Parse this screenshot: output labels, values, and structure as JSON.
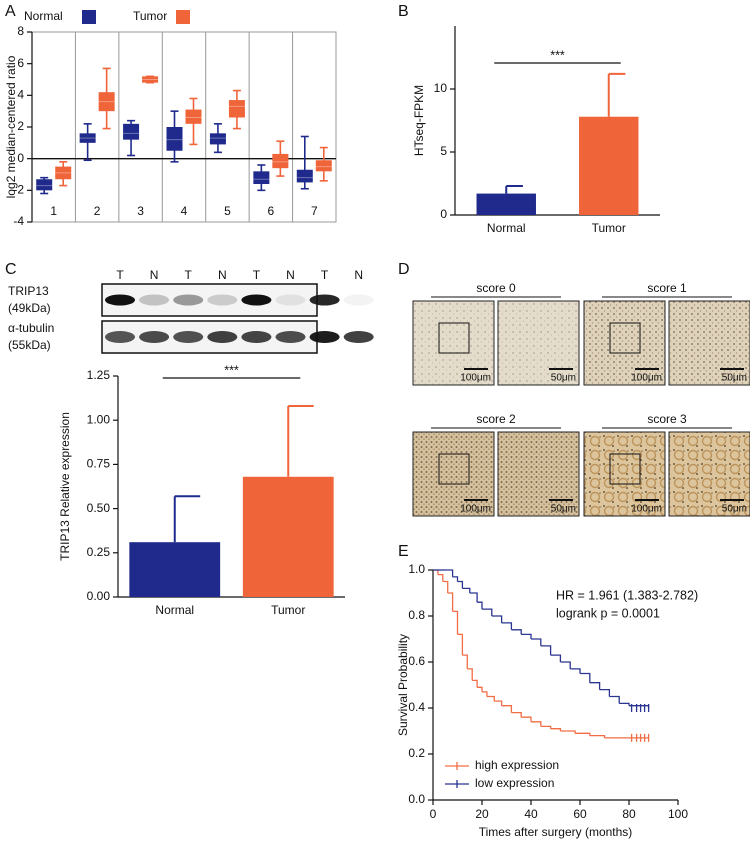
{
  "chart_data": [
    {
      "panel": "A",
      "type": "box",
      "ylabel": "log2 median-centered ratio",
      "categories": [
        "1",
        "2",
        "3",
        "4",
        "5",
        "6",
        "7"
      ],
      "ylim": [
        -4,
        8
      ],
      "yticks": [
        -4,
        -2,
        0,
        2,
        4,
        6,
        8
      ],
      "series": [
        {
          "name": "Normal",
          "color": "#1f2a8c",
          "min": [
            -2.2,
            -0.1,
            0.2,
            -0.2,
            0.4,
            -2.0,
            -1.9
          ],
          "q1": [
            -2.0,
            1.0,
            1.2,
            0.5,
            0.9,
            -1.6,
            -1.5
          ],
          "median": [
            -1.7,
            1.3,
            1.6,
            1.2,
            1.3,
            -1.3,
            -1.2
          ],
          "q3": [
            -1.3,
            1.6,
            2.2,
            2.0,
            1.6,
            -0.8,
            -0.7
          ],
          "max": [
            -1.2,
            2.2,
            2.4,
            3.0,
            2.2,
            -0.4,
            1.4
          ]
        },
        {
          "name": "Tumor",
          "color": "#f0643a",
          "min": [
            -1.7,
            1.9,
            4.8,
            0.9,
            1.9,
            -1.1,
            -1.4
          ],
          "q1": [
            -1.3,
            3.0,
            4.8,
            2.2,
            2.6,
            -0.6,
            -0.8
          ],
          "median": [
            -0.9,
            3.6,
            5.0,
            2.6,
            3.3,
            -0.2,
            -0.5
          ],
          "q3": [
            -0.5,
            4.2,
            5.2,
            3.1,
            3.7,
            0.3,
            -0.1
          ],
          "max": [
            -0.2,
            5.7,
            5.2,
            3.8,
            4.3,
            1.1,
            0.7
          ]
        }
      ]
    },
    {
      "panel": "B",
      "type": "bar",
      "ylabel": "HTseq-FPKM",
      "categories": [
        "Normal",
        "Tumor"
      ],
      "values": [
        1.7,
        7.8
      ],
      "errors": [
        0.6,
        3.4
      ],
      "colors": [
        "#1f2a8c",
        "#f0643a"
      ],
      "ylim": [
        0,
        15
      ],
      "yticks": [
        0,
        5,
        10
      ],
      "annotation": "***"
    },
    {
      "panel": "C",
      "type": "bar",
      "ylabel": "TRIP13 Relative expression",
      "blot": {
        "lanes": [
          "T",
          "N",
          "T",
          "N",
          "T",
          "N",
          "T",
          "N"
        ],
        "rows": [
          {
            "name": "TRIP13",
            "size": "(49kDa)"
          },
          {
            "name": "α-tubulin",
            "size": "(55kDa)"
          }
        ]
      },
      "categories": [
        "Normal",
        "Tumor"
      ],
      "values": [
        0.31,
        0.68
      ],
      "errors": [
        0.26,
        0.4
      ],
      "colors": [
        "#1f2a8c",
        "#f0643a"
      ],
      "ylim": [
        0,
        1.25
      ],
      "yticks": [
        {
          "value": 0,
          "label": "0.00"
        },
        {
          "value": 0.25,
          "label": "0.25"
        },
        {
          "value": 0.5,
          "label": "0.50"
        },
        {
          "value": 0.75,
          "label": "0.75"
        },
        {
          "value": 1,
          "label": "1.00"
        },
        {
          "value": 1.25,
          "label": "1.25"
        }
      ],
      "annotation": "***"
    },
    {
      "panel": "D",
      "type": "image-grid",
      "panels": [
        {
          "title": "score 0",
          "scales": [
            "100μm",
            "50μm"
          ]
        },
        {
          "title": "score 1",
          "scales": [
            "100μm",
            "50μm"
          ]
        },
        {
          "title": "score 2",
          "scales": [
            "100μm",
            "50μm"
          ]
        },
        {
          "title": "score 3",
          "scales": [
            "100μm",
            "50μm"
          ]
        }
      ]
    },
    {
      "panel": "E",
      "type": "survival",
      "xlabel": "Times after surgery (months)",
      "ylabel": "Survival Probability",
      "xlim": [
        0,
        100
      ],
      "xticks": [
        0,
        20,
        40,
        60,
        80,
        100
      ],
      "ylim": [
        0,
        1
      ],
      "yticks": [
        {
          "value": 0,
          "label": "0.0"
        },
        {
          "value": 0.2,
          "label": "0.2"
        },
        {
          "value": 0.4,
          "label": "0.4"
        },
        {
          "value": 0.6,
          "label": "0.6"
        },
        {
          "value": 0.8,
          "label": "0.8"
        },
        {
          "value": 1,
          "label": "1.0"
        }
      ],
      "annotations": [
        "HR = 1.961 (1.383-2.782)",
        "logrank p = 0.0001"
      ],
      "legend": "lower left",
      "series": [
        {
          "name": "high expression",
          "color": "#f26d45",
          "x": [
            0,
            2,
            4,
            6,
            8,
            10,
            12,
            14,
            16,
            18,
            20,
            22,
            25,
            28,
            32,
            36,
            40,
            44,
            48,
            52,
            58,
            64,
            70,
            88
          ],
          "values": [
            1,
            0.98,
            0.95,
            0.9,
            0.82,
            0.72,
            0.63,
            0.57,
            0.52,
            0.49,
            0.47,
            0.45,
            0.43,
            0.41,
            0.38,
            0.36,
            0.34,
            0.32,
            0.31,
            0.3,
            0.29,
            0.28,
            0.27,
            0.27
          ]
        },
        {
          "name": "low expression",
          "color": "#2a3590",
          "x": [
            0,
            6,
            8,
            10,
            12,
            15,
            18,
            20,
            24,
            28,
            32,
            36,
            40,
            44,
            48,
            52,
            56,
            60,
            64,
            68,
            72,
            76,
            80,
            88
          ],
          "values": [
            1,
            1,
            0.97,
            0.95,
            0.92,
            0.9,
            0.86,
            0.83,
            0.8,
            0.77,
            0.74,
            0.72,
            0.7,
            0.67,
            0.63,
            0.6,
            0.57,
            0.55,
            0.51,
            0.48,
            0.45,
            0.42,
            0.41,
            0.4
          ]
        }
      ]
    }
  ]
}
